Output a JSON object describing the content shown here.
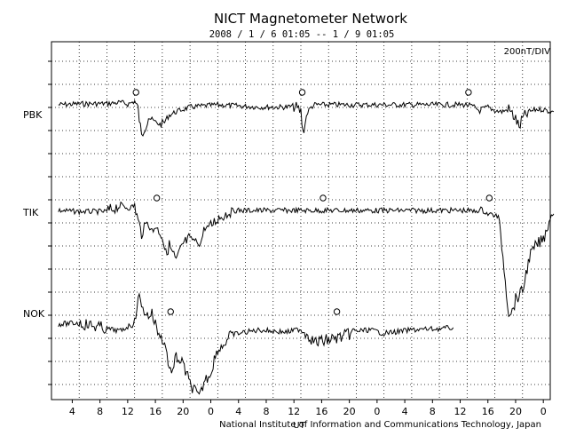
{
  "header": {
    "title": "NICT Magnetometer Network",
    "period": "2008 / 1 / 6  01:05 -- 1 / 9  01:05",
    "scale": "200nT/DIV",
    "credit": "National Institute of Information and Communications Technology, Japan"
  },
  "chart_data": {
    "type": "line",
    "title": "NICT Magnetometer Network",
    "subtitle": "2008 / 1 / 6  01:05 -- 1 / 9  01:05",
    "xlabel": "UT",
    "ylabel": "",
    "x_ticks": [
      "4",
      "8",
      "12",
      "16",
      "20",
      "0",
      "4",
      "8",
      "12",
      "16",
      "20",
      "0",
      "4",
      "8",
      "12",
      "16",
      "20",
      "0"
    ],
    "grid": true,
    "scale": "200nT/DIV",
    "series": [
      {
        "name": "PBK",
        "x": [
          1.0,
          4,
          8,
          10,
          11,
          12,
          12.5,
          13,
          13.4,
          14,
          15,
          16,
          16.5,
          17,
          18,
          20,
          24,
          30,
          34,
          35,
          36,
          36.3,
          36.6,
          37,
          37.5,
          38,
          42,
          48,
          56,
          60,
          61,
          62,
          62,
          63,
          64,
          65,
          66,
          67,
          67.5,
          68,
          69,
          70,
          71,
          72,
          72.5
        ],
        "y": [
          0,
          8,
          10,
          20,
          5,
          30,
          -40,
          -280,
          -200,
          -110,
          -150,
          -180,
          -130,
          -90,
          -60,
          -20,
          0,
          -20,
          -20,
          -10,
          -60,
          -240,
          -160,
          -60,
          -20,
          0,
          0,
          0,
          0,
          0,
          -20,
          -60,
          -40,
          -20,
          -50,
          -60,
          -40,
          -120,
          -200,
          -120,
          -60,
          -40,
          -40,
          -60,
          -60
        ],
        "markers_x": [
          12.2,
          36.2,
          60.2
        ]
      },
      {
        "name": "TIK",
        "x": [
          1.0,
          4,
          8,
          10,
          11,
          12,
          12.5,
          13,
          13.4,
          13.8,
          14,
          14.4,
          15,
          15.5,
          16,
          16.5,
          17,
          18,
          19,
          20,
          21,
          21.5,
          22,
          23,
          24,
          26,
          28,
          32,
          36,
          38,
          40,
          44,
          48,
          52,
          56,
          60,
          61,
          62,
          63,
          64,
          64.5,
          65,
          65.5,
          66,
          66.5,
          67,
          68,
          69,
          70,
          71,
          72,
          72.5
        ],
        "y": [
          0,
          -10,
          -10,
          50,
          20,
          40,
          -90,
          -200,
          -130,
          -110,
          -90,
          -190,
          -140,
          -170,
          -220,
          -380,
          -300,
          -440,
          -290,
          -240,
          -270,
          -300,
          -160,
          -130,
          -70,
          0,
          0,
          0,
          0,
          0,
          0,
          0,
          0,
          0,
          0,
          0,
          -10,
          10,
          -30,
          -40,
          -60,
          -300,
          -600,
          -900,
          -880,
          -770,
          -700,
          -400,
          -300,
          -250,
          -60,
          -30
        ],
        "markers_x": [
          15.2,
          39.2,
          63.2
        ]
      },
      {
        "name": "NOK",
        "x": [
          1.0,
          4,
          8,
          10,
          11,
          12,
          12.5,
          13,
          13.4,
          14,
          14.5,
          15,
          15.5,
          16,
          16.5,
          17,
          17.5,
          18,
          19,
          20,
          21,
          21.5,
          22,
          23,
          23.5,
          24,
          24.5,
          26,
          30,
          34,
          36,
          37,
          38,
          42,
          44,
          46,
          48,
          52,
          56,
          58
        ],
        "y": [
          0,
          10,
          -40,
          -60,
          -20,
          0,
          260,
          150,
          120,
          60,
          90,
          0,
          -90,
          -120,
          -200,
          -380,
          -420,
          -280,
          -350,
          -520,
          -600,
          -620,
          -500,
          -420,
          -300,
          -240,
          -200,
          -90,
          -50,
          -70,
          -40,
          -90,
          -160,
          -110,
          -60,
          -50,
          -80,
          -50,
          -40,
          -30
        ],
        "markers_x": [
          17.2,
          41.2
        ]
      }
    ]
  }
}
